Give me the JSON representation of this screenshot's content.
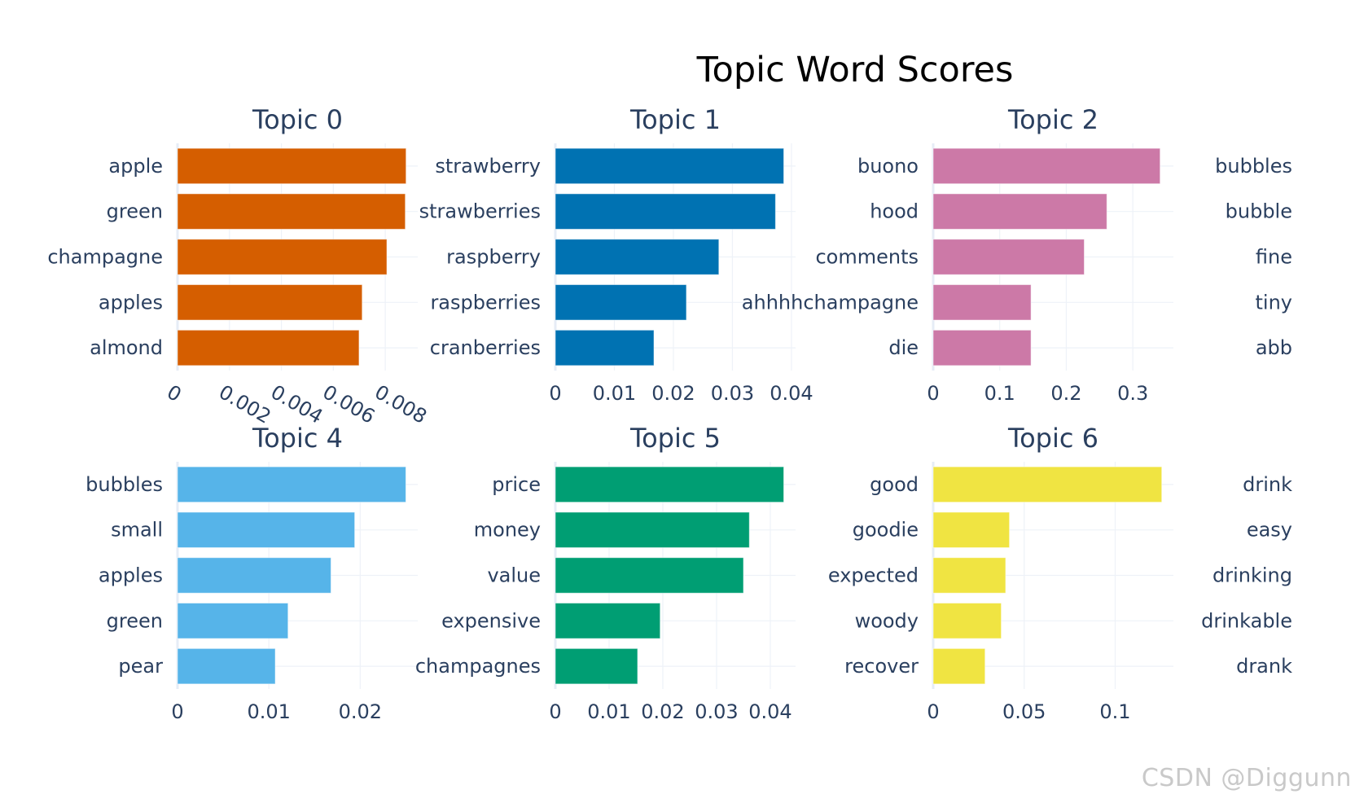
{
  "chart_data": {
    "title": "Topic Word Scores",
    "type": "bar",
    "orientation": "horizontal",
    "grid": true,
    "subplots": [
      {
        "title": "Topic 0",
        "color": "#D55E00",
        "categories": [
          "apple",
          "green",
          "champagne",
          "apples",
          "almond"
        ],
        "values": [
          0.0088,
          0.00877,
          0.00806,
          0.00711,
          0.00699
        ],
        "xlim": [
          0,
          0.00925
        ],
        "ticks": [
          0,
          0.002,
          0.004,
          0.006,
          0.008
        ],
        "tick_labels": [
          "0",
          "0.002",
          "0.004",
          "0.006",
          "0.008"
        ],
        "tick_rotation": 30
      },
      {
        "title": "Topic 1",
        "color": "#0072B2",
        "categories": [
          "strawberry",
          "strawberries",
          "raspberry",
          "raspberries",
          "cranberries"
        ],
        "values": [
          0.0387,
          0.0373,
          0.0277,
          0.0222,
          0.0167
        ],
        "xlim": [
          0,
          0.0407
        ],
        "ticks": [
          0,
          0.01,
          0.02,
          0.03,
          0.04
        ],
        "tick_labels": [
          "0",
          "0.01",
          "0.02",
          "0.03",
          "0.04"
        ]
      },
      {
        "title": "Topic 2",
        "color": "#CC79A7",
        "categories": [
          "buono",
          "hood",
          "comments",
          "ahhhhchampagne",
          "die"
        ],
        "values": [
          0.341,
          0.261,
          0.227,
          0.147,
          0.147
        ],
        "xlim": [
          0,
          0.361
        ],
        "ticks": [
          0,
          0.1,
          0.2,
          0.3
        ],
        "tick_labels": [
          "0",
          "0.1",
          "0.2",
          "0.3"
        ]
      },
      {
        "title": "",
        "color": "",
        "categories": [
          "bubbles",
          "bubble",
          "fine",
          "tiny",
          "abb"
        ],
        "values": [],
        "labels_only": true
      },
      {
        "title": "Topic 4",
        "color": "#56B4E9",
        "categories": [
          "bubbles",
          "small",
          "apples",
          "green",
          "pear"
        ],
        "values": [
          0.025,
          0.0194,
          0.0168,
          0.0121,
          0.0107
        ],
        "xlim": [
          0,
          0.0263
        ],
        "ticks": [
          0,
          0.01,
          0.02
        ],
        "tick_labels": [
          "0",
          "0.01",
          "0.02"
        ]
      },
      {
        "title": "Topic 5",
        "color": "#009E73",
        "categories": [
          "price",
          "money",
          "value",
          "expensive",
          "champagnes"
        ],
        "values": [
          0.0425,
          0.0361,
          0.035,
          0.0195,
          0.0153
        ],
        "xlim": [
          0,
          0.0447
        ],
        "ticks": [
          0,
          0.01,
          0.02,
          0.03,
          0.04
        ],
        "tick_labels": [
          "0",
          "0.01",
          "0.02",
          "0.03",
          "0.04"
        ]
      },
      {
        "title": "Topic 6",
        "color": "#F0E442",
        "categories": [
          "good",
          "goodie",
          "expected",
          "woody",
          "recover"
        ],
        "values": [
          0.1256,
          0.0419,
          0.0398,
          0.0374,
          0.0285
        ],
        "xlim": [
          0,
          0.132
        ],
        "ticks": [
          0,
          0.05,
          0.1
        ],
        "tick_labels": [
          "0",
          "0.05",
          "0.1"
        ]
      },
      {
        "title": "",
        "color": "",
        "categories": [
          "drink",
          "easy",
          "drinking",
          "drinkable",
          "drank"
        ],
        "values": [],
        "labels_only": true
      }
    ]
  },
  "watermark": "CSDN @Diggunn"
}
